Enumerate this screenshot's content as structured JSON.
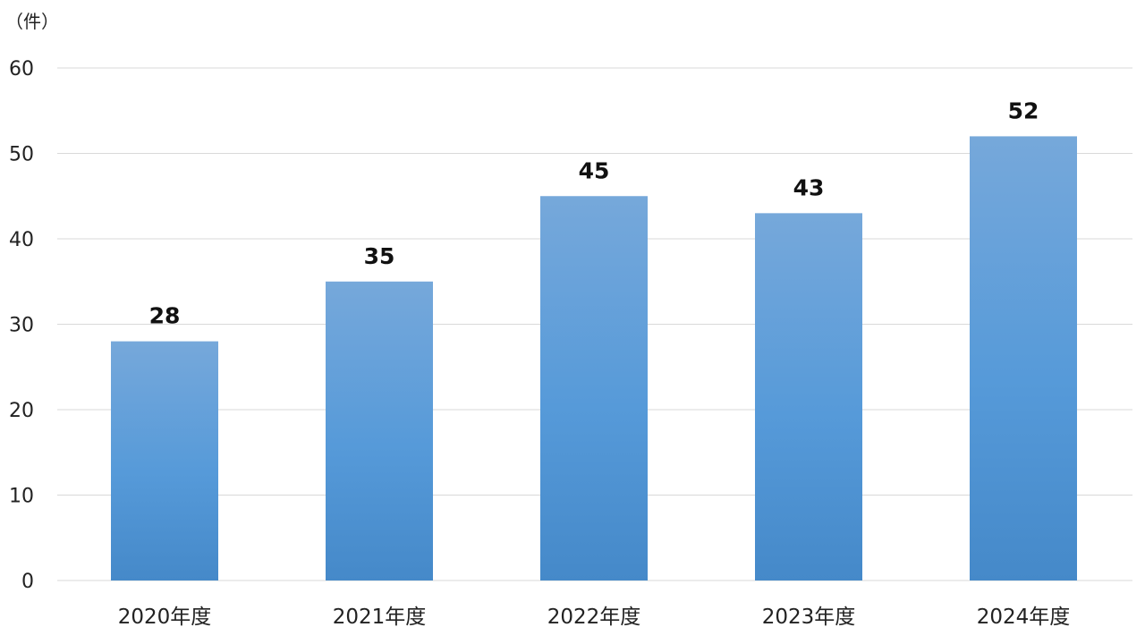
{
  "chart_data": {
    "type": "bar",
    "title": "",
    "ylabel": "（件）",
    "xlabel": "",
    "categories": [
      "2020年度",
      "2021年度",
      "2022年度",
      "2023年度",
      "2024年度"
    ],
    "values": [
      28,
      35,
      45,
      43,
      52
    ],
    "ylim": [
      0,
      60
    ],
    "yticks": [
      0,
      10,
      20,
      30,
      40,
      50,
      60
    ],
    "grid": true,
    "data_labels": true,
    "bar_color_top": "#76a8da",
    "bar_color_bottom": "#4589c9"
  }
}
